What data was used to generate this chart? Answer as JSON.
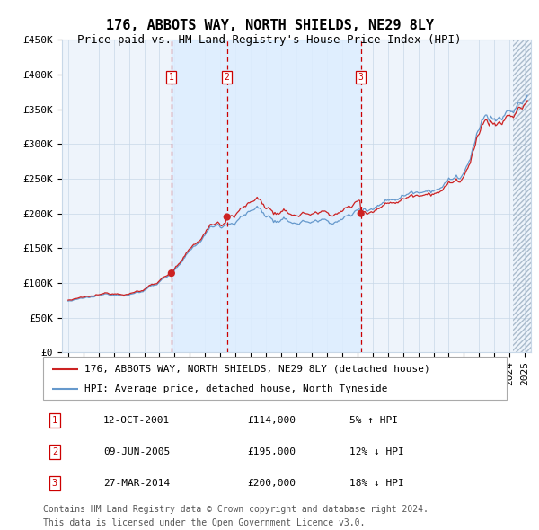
{
  "title": "176, ABBOTS WAY, NORTH SHIELDS, NE29 8LY",
  "subtitle": "Price paid vs. HM Land Registry's House Price Index (HPI)",
  "legend_property": "176, ABBOTS WAY, NORTH SHIELDS, NE29 8LY (detached house)",
  "legend_hpi": "HPI: Average price, detached house, North Tyneside",
  "footer1": "Contains HM Land Registry data © Crown copyright and database right 2024.",
  "footer2": "This data is licensed under the Open Government Licence v3.0.",
  "transactions": [
    {
      "num": 1,
      "date": "12-OCT-2001",
      "price": 114000,
      "pct": "5%",
      "dir": "↑"
    },
    {
      "num": 2,
      "date": "09-JUN-2005",
      "price": 195000,
      "pct": "12%",
      "dir": "↓"
    },
    {
      "num": 3,
      "date": "27-MAR-2014",
      "price": 200000,
      "pct": "18%",
      "dir": "↓"
    }
  ],
  "transaction_dates_decimal": [
    2001.79,
    2005.44,
    2014.23
  ],
  "ylim": [
    0,
    450000
  ],
  "yticks": [
    0,
    50000,
    100000,
    150000,
    200000,
    250000,
    300000,
    350000,
    400000,
    450000
  ],
  "xlim_start": 1994.6,
  "xlim_end": 2025.4,
  "hpi_color": "#6699cc",
  "property_color": "#cc2222",
  "dot_color": "#cc2222",
  "vline_color": "#cc0000",
  "shade_color": "#ddeeff",
  "grid_color": "#c8d8e8",
  "bg_color": "#eef4fb",
  "title_fontsize": 11,
  "subtitle_fontsize": 9,
  "axis_fontsize": 8,
  "legend_fontsize": 8,
  "footer_fontsize": 7
}
